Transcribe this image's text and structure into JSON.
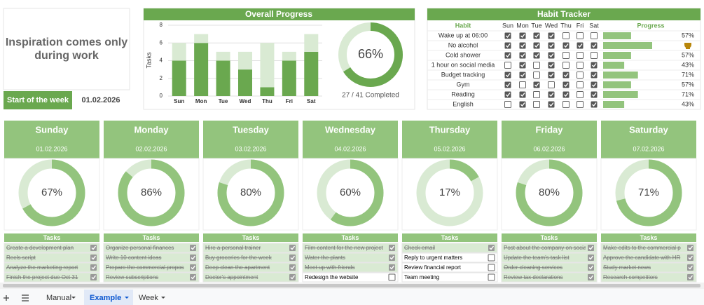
{
  "inspiration": "Inspiration comes only during work",
  "start_label": "Start of the week",
  "start_date": "01.02.2026",
  "chart_data": [
    {
      "type": "bar",
      "title": "Overall Progress",
      "ylabel": "Tasks",
      "categories": [
        "Sun",
        "Mon",
        "Tue",
        "Wed",
        "Thu",
        "Fri",
        "Sat"
      ],
      "series": [
        {
          "color": "#6aa84f",
          "values": [
            4,
            6,
            4,
            3,
            1,
            4,
            5
          ]
        },
        {
          "color": "#d9ead3",
          "values": [
            2,
            1,
            1,
            2,
            5,
            1,
            2
          ]
        }
      ],
      "ylim": [
        0,
        8
      ],
      "yticks": [
        0,
        2,
        4,
        6,
        8
      ],
      "grid": true
    },
    {
      "type": "donut",
      "values": [
        66
      ],
      "value_labels": [
        "66%"
      ],
      "caption": "27 / 41 Completed",
      "color": "#6aa84f"
    }
  ],
  "habit_tracker": {
    "title": "Habit Tracker",
    "columns": [
      "Habit",
      "Sun",
      "Mon",
      "Tue",
      "Wed",
      "Thu",
      "Fri",
      "Sat",
      "Progress"
    ],
    "rows": [
      {
        "habit": "Wake up at 06:00",
        "checks": [
          true,
          true,
          true,
          true,
          false,
          false,
          false
        ],
        "progress": 57,
        "progress_label": "57%"
      },
      {
        "habit": "No alcohol",
        "checks": [
          true,
          true,
          true,
          true,
          true,
          true,
          true
        ],
        "progress": 100
      },
      {
        "habit": "Cold shower",
        "checks": [
          true,
          true,
          true,
          true,
          false,
          false,
          false
        ],
        "progress": 57,
        "progress_label": "57%"
      },
      {
        "habit": "1 hour on social media",
        "checks": [
          false,
          true,
          false,
          true,
          false,
          false,
          true
        ],
        "progress": 43,
        "progress_label": "43%"
      },
      {
        "habit": "Budget tracking",
        "checks": [
          true,
          true,
          false,
          true,
          true,
          false,
          true
        ],
        "progress": 71,
        "progress_label": "71%"
      },
      {
        "habit": "Gym",
        "checks": [
          true,
          false,
          true,
          false,
          true,
          false,
          true
        ],
        "progress": 57,
        "progress_label": "57%"
      },
      {
        "habit": "Reading",
        "checks": [
          true,
          true,
          false,
          true,
          true,
          false,
          true
        ],
        "progress": 71,
        "progress_label": "71%"
      },
      {
        "habit": "English",
        "checks": [
          false,
          true,
          false,
          true,
          false,
          false,
          true
        ],
        "progress": 43,
        "progress_label": "43%"
      }
    ]
  },
  "tasks_header": "Tasks",
  "days": [
    {
      "name": "Sunday",
      "date": "01.02.2026",
      "progress": 67,
      "progress_label": "67%",
      "tasks": [
        {
          "text": "Create a development plan",
          "done": true
        },
        {
          "text": "Reels script",
          "done": true
        },
        {
          "text": "Analyze the marketing report",
          "done": true
        },
        {
          "text": "Finish the project due Oct 31",
          "done": true
        }
      ]
    },
    {
      "name": "Monday",
      "date": "02.02.2026",
      "progress": 86,
      "progress_label": "86%",
      "tasks": [
        {
          "text": "Organize personal finances",
          "done": true
        },
        {
          "text": "Write 10 content ideas",
          "done": true
        },
        {
          "text": "Prepare the commercial propos",
          "done": true
        },
        {
          "text": "Review subscriptions",
          "done": true
        }
      ]
    },
    {
      "name": "Tuesday",
      "date": "03.02.2026",
      "progress": 80,
      "progress_label": "80%",
      "tasks": [
        {
          "text": "Hire a personal trainer",
          "done": true
        },
        {
          "text": "Buy groceries for the week",
          "done": true
        },
        {
          "text": "Deep clean the apartment",
          "done": true
        },
        {
          "text": "Doctor's appointment",
          "done": true
        }
      ]
    },
    {
      "name": "Wednesday",
      "date": "04.02.2026",
      "progress": 60,
      "progress_label": "60%",
      "tasks": [
        {
          "text": "Film content for the new project",
          "done": true
        },
        {
          "text": "Water the plants",
          "done": true
        },
        {
          "text": "Meet up with friends",
          "done": true
        },
        {
          "text": "Redesign the website",
          "done": false
        }
      ]
    },
    {
      "name": "Thursday",
      "date": "05.02.2026",
      "progress": 17,
      "progress_label": "17%",
      "tasks": [
        {
          "text": "Check email",
          "done": true
        },
        {
          "text": "Reply to urgent matters",
          "done": false
        },
        {
          "text": "Review financial report",
          "done": false
        },
        {
          "text": "Team meeting",
          "done": false
        }
      ]
    },
    {
      "name": "Friday",
      "date": "06.02.2026",
      "progress": 80,
      "progress_label": "80%",
      "tasks": [
        {
          "text": "Post about the company on social",
          "done": true
        },
        {
          "text": "Update the team's task list",
          "done": true
        },
        {
          "text": "Order cleaning services",
          "done": true
        },
        {
          "text": "Review tax declarations",
          "done": true
        }
      ]
    },
    {
      "name": "Saturday",
      "date": "07.02.2026",
      "progress": 71,
      "progress_label": "71%",
      "tasks": [
        {
          "text": "Make edits to the commercial p",
          "done": true
        },
        {
          "text": "Approve the candidate with HR",
          "done": true
        },
        {
          "text": "Study market news",
          "done": true
        },
        {
          "text": "Research competitors",
          "done": true
        }
      ]
    }
  ],
  "tabs": [
    "Manual",
    "Example",
    "Week"
  ],
  "active_tab": 1
}
